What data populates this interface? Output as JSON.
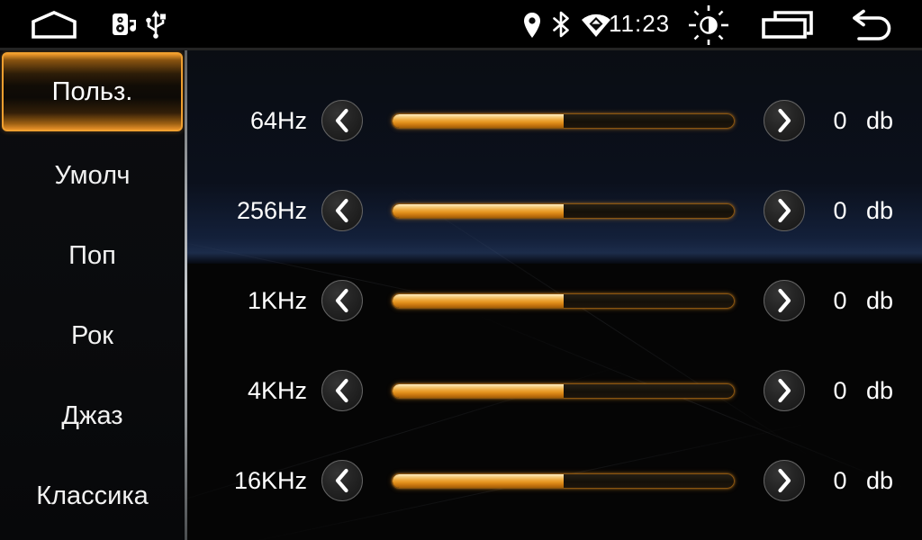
{
  "status_bar": {
    "time": "11:23",
    "icons": [
      {
        "name": "home-icon"
      },
      {
        "name": "audio-icon"
      },
      {
        "name": "usb-icon"
      },
      {
        "name": "location-icon"
      },
      {
        "name": "bluetooth-icon"
      },
      {
        "name": "wifi-icon"
      },
      {
        "name": "brightness-icon"
      },
      {
        "name": "recents-icon"
      },
      {
        "name": "back-icon"
      }
    ]
  },
  "sidebar": {
    "items": [
      {
        "label": "Польз.",
        "selected": true
      },
      {
        "label": "Умолч",
        "selected": false
      },
      {
        "label": "Поп",
        "selected": false
      },
      {
        "label": "Рок",
        "selected": false
      },
      {
        "label": "Джаз",
        "selected": false
      },
      {
        "label": "Классика",
        "selected": false
      }
    ]
  },
  "equalizer": {
    "unit_label": "db",
    "bands": [
      {
        "label": "64Hz",
        "value": "0",
        "fill_percent": 50
      },
      {
        "label": "256Hz",
        "value": "0",
        "fill_percent": 50
      },
      {
        "label": "1KHz",
        "value": "0",
        "fill_percent": 50
      },
      {
        "label": "4KHz",
        "value": "0",
        "fill_percent": 50
      },
      {
        "label": "16KHz",
        "value": "0",
        "fill_percent": 50
      }
    ]
  },
  "colors": {
    "accent_orange": "#ef9a2b",
    "selected_border": "#ef9f2f",
    "slider_fill_top": "#fdeec6",
    "slider_fill_mid": "#efae44",
    "slider_fill_bottom": "#a15d07",
    "divider_gray": "#c3c7cb"
  }
}
